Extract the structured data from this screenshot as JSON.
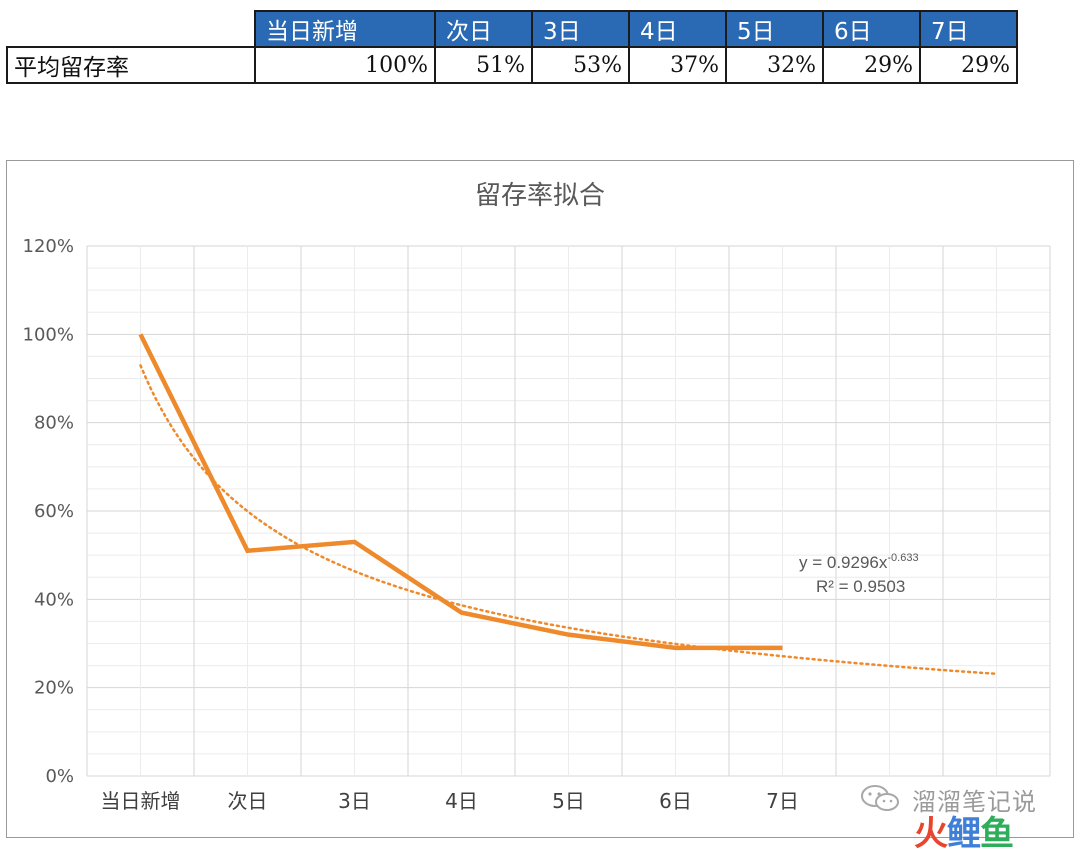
{
  "table": {
    "headers": [
      "当日新增",
      "次日",
      "3日",
      "4日",
      "5日",
      "6日",
      "7日"
    ],
    "row_label": "平均留存率",
    "values": [
      "100%",
      "51%",
      "53%",
      "37%",
      "32%",
      "29%",
      "29%"
    ],
    "header_color": "#2a6ab4"
  },
  "chart_data": {
    "type": "line",
    "title": "留存率拟合",
    "categories": [
      "当日新增",
      "次日",
      "3日",
      "4日",
      "5日",
      "6日",
      "7日"
    ],
    "series": [
      {
        "values": [
          1.0,
          0.51,
          0.53,
          0.37,
          0.32,
          0.29,
          0.29
        ],
        "color": "#ee8a2c",
        "style": "solid"
      }
    ],
    "trendline": {
      "type": "power",
      "a": 0.9296,
      "b": -0.633,
      "extends_to_period": 9,
      "color": "#ee8a2c",
      "style": "dotted",
      "equation_base": "y = 0.9296x",
      "equation_exponent": "-0.633",
      "r_squared": "R² = 0.9503"
    },
    "y_ticks": [
      "0%",
      "20%",
      "40%",
      "60%",
      "80%",
      "100%",
      "120%"
    ],
    "ylim": [
      0,
      1.2
    ],
    "grid": true,
    "legend": "none"
  },
  "watermark": {
    "text": "溜溜笔记说",
    "logo_1": "火",
    "logo_2": "鲤",
    "logo_3": "鱼"
  }
}
